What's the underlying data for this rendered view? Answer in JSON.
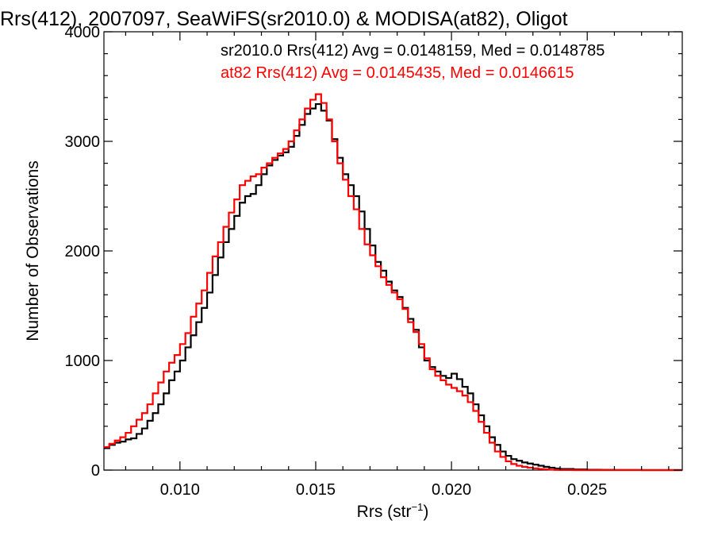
{
  "chart_data": {
    "type": "line",
    "title": "Rrs(412), 2007097, SeaWiFS(sr2010.0) & MODISA(at82), Oligot",
    "xlabel": "Rrs (str",
    "xlabel_sup": "−1",
    "xlabel_close": ")",
    "ylabel": "Number of Observations",
    "xlim": [
      0.0072,
      0.0285
    ],
    "ylim": [
      0,
      4000
    ],
    "x_ticks": [
      0.01,
      0.015,
      0.02,
      0.025
    ],
    "x_tick_labels": [
      "0.010",
      "0.015",
      "0.020",
      "0.025"
    ],
    "y_ticks": [
      0,
      1000,
      2000,
      3000,
      4000
    ],
    "y_tick_labels": [
      "0",
      "1000",
      "2000",
      "3000",
      "4000"
    ],
    "legend_placement": "top-right",
    "series": [
      {
        "name": "sr2010.0",
        "label": "sr2010.0 Rrs(412) Avg = 0.0148159, Med = 0.0148785",
        "color": "#000000",
        "step": true,
        "x": [
          0.0072,
          0.0074,
          0.0076,
          0.0078,
          0.008,
          0.0082,
          0.0084,
          0.0086,
          0.0088,
          0.009,
          0.0092,
          0.0094,
          0.0096,
          0.0098,
          0.01,
          0.0102,
          0.0104,
          0.0106,
          0.0108,
          0.011,
          0.0112,
          0.0114,
          0.0116,
          0.0118,
          0.012,
          0.0122,
          0.0124,
          0.0126,
          0.0128,
          0.013,
          0.0132,
          0.0134,
          0.0136,
          0.0138,
          0.014,
          0.0142,
          0.0144,
          0.0146,
          0.0148,
          0.015,
          0.0152,
          0.0154,
          0.0156,
          0.0158,
          0.016,
          0.0162,
          0.0164,
          0.0166,
          0.0168,
          0.017,
          0.0172,
          0.0174,
          0.0176,
          0.0178,
          0.018,
          0.0182,
          0.0184,
          0.0186,
          0.0188,
          0.019,
          0.0192,
          0.0194,
          0.0196,
          0.0198,
          0.02,
          0.0202,
          0.0204,
          0.0206,
          0.0208,
          0.021,
          0.0212,
          0.0214,
          0.0216,
          0.0218,
          0.022,
          0.0222,
          0.0224,
          0.0226,
          0.0228,
          0.023,
          0.0232,
          0.0234,
          0.0236,
          0.0238,
          0.024,
          0.0245,
          0.025,
          0.0255,
          0.026,
          0.027,
          0.0285
        ],
        "values": [
          200,
          230,
          250,
          260,
          280,
          290,
          330,
          380,
          450,
          520,
          600,
          700,
          820,
          900,
          1000,
          1120,
          1230,
          1350,
          1480,
          1620,
          1780,
          1940,
          2080,
          2200,
          2320,
          2440,
          2500,
          2520,
          2600,
          2700,
          2780,
          2830,
          2870,
          2900,
          2950,
          3050,
          3150,
          3250,
          3300,
          3340,
          3280,
          3190,
          3020,
          2850,
          2700,
          2600,
          2500,
          2360,
          2200,
          2050,
          1900,
          1820,
          1720,
          1640,
          1580,
          1480,
          1380,
          1280,
          1120,
          1000,
          940,
          900,
          860,
          840,
          880,
          830,
          760,
          700,
          600,
          500,
          400,
          300,
          230,
          170,
          130,
          100,
          85,
          70,
          60,
          50,
          40,
          30,
          22,
          15,
          10,
          6,
          3,
          2,
          1,
          0,
          0
        ]
      },
      {
        "name": "at82",
        "label": "at82 Rrs(412) Avg = 0.0145435, Med = 0.0146615",
        "color": "#ff0000",
        "step": true,
        "x": [
          0.0072,
          0.0074,
          0.0076,
          0.0078,
          0.008,
          0.0082,
          0.0084,
          0.0086,
          0.0088,
          0.009,
          0.0092,
          0.0094,
          0.0096,
          0.0098,
          0.01,
          0.0102,
          0.0104,
          0.0106,
          0.0108,
          0.011,
          0.0112,
          0.0114,
          0.0116,
          0.0118,
          0.012,
          0.0122,
          0.0124,
          0.0126,
          0.0128,
          0.013,
          0.0132,
          0.0134,
          0.0136,
          0.0138,
          0.014,
          0.0142,
          0.0144,
          0.0146,
          0.0148,
          0.015,
          0.0152,
          0.0154,
          0.0156,
          0.0158,
          0.016,
          0.0162,
          0.0164,
          0.0166,
          0.0168,
          0.017,
          0.0172,
          0.0174,
          0.0176,
          0.0178,
          0.018,
          0.0182,
          0.0184,
          0.0186,
          0.0188,
          0.019,
          0.0192,
          0.0194,
          0.0196,
          0.0198,
          0.02,
          0.0202,
          0.0204,
          0.0206,
          0.0208,
          0.021,
          0.0212,
          0.0214,
          0.0216,
          0.0218,
          0.022,
          0.0222,
          0.0224,
          0.0226,
          0.0228,
          0.023,
          0.0232,
          0.0234,
          0.0236,
          0.0238,
          0.024,
          0.0245,
          0.025,
          0.0255,
          0.026,
          0.027,
          0.0285
        ],
        "values": [
          210,
          240,
          270,
          300,
          340,
          400,
          460,
          520,
          600,
          700,
          800,
          900,
          980,
          1050,
          1150,
          1250,
          1400,
          1520,
          1640,
          1800,
          1950,
          2080,
          2220,
          2350,
          2470,
          2600,
          2640,
          2680,
          2700,
          2760,
          2800,
          2850,
          2890,
          2930,
          3000,
          3100,
          3200,
          3300,
          3380,
          3430,
          3350,
          3200,
          3000,
          2800,
          2650,
          2500,
          2380,
          2200,
          2060,
          1960,
          1860,
          1760,
          1690,
          1620,
          1560,
          1470,
          1350,
          1260,
          1150,
          1020,
          920,
          860,
          820,
          780,
          750,
          720,
          680,
          620,
          540,
          440,
          340,
          250,
          170,
          120,
          80,
          55,
          40,
          30,
          22,
          16,
          10,
          7,
          4,
          2,
          1,
          0,
          0,
          0,
          0,
          0,
          0
        ]
      }
    ]
  }
}
